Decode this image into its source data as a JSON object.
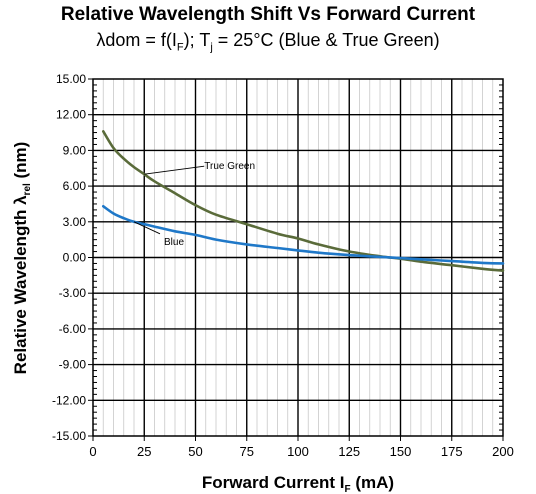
{
  "chart_data": {
    "type": "line",
    "title": "Relative Wavelength Shift Vs Forward Current",
    "subtitle": {
      "pre": "λdom = f(I",
      "sub1": "F",
      "mid": "); T",
      "sub2": "j",
      "post": " = 25°C (Blue & True Green)"
    },
    "xlabel": {
      "main": "Forward Current I",
      "sub": "F",
      "unit": " (mA)"
    },
    "ylabel": {
      "main": "Relative Wavelength λ",
      "sub": "rel",
      "unit": " (nm)"
    },
    "xlim": [
      0,
      200
    ],
    "ylim": [
      -15,
      15
    ],
    "x_ticks": [
      "0",
      "25",
      "50",
      "75",
      "100",
      "125",
      "150",
      "175",
      "200"
    ],
    "y_ticks": [
      "15.00",
      "12.00",
      "9.00",
      "6.00",
      "3.00",
      "0.00",
      "-3.00",
      "-6.00",
      "-9.00",
      "-12.00",
      "-15.00"
    ],
    "grid": true,
    "series": [
      {
        "name": "True Green",
        "color": "#5a6b3a",
        "x": [
          5,
          10,
          15,
          20,
          25,
          30,
          40,
          50,
          60,
          75,
          90,
          100,
          110,
          125,
          140,
          150,
          160,
          175,
          190,
          200
        ],
        "y": [
          10.6,
          9.2,
          8.3,
          7.6,
          7.0,
          6.4,
          5.4,
          4.4,
          3.6,
          2.8,
          2.0,
          1.6,
          1.1,
          0.5,
          0.1,
          -0.1,
          -0.35,
          -0.65,
          -0.95,
          -1.1
        ]
      },
      {
        "name": "Blue",
        "color": "#1f78c8",
        "x": [
          5,
          10,
          15,
          20,
          25,
          30,
          40,
          50,
          60,
          75,
          90,
          100,
          110,
          125,
          140,
          150,
          160,
          175,
          190,
          200
        ],
        "y": [
          4.3,
          3.7,
          3.3,
          3.0,
          2.8,
          2.6,
          2.2,
          1.9,
          1.5,
          1.1,
          0.8,
          0.6,
          0.4,
          0.2,
          0.05,
          -0.05,
          -0.15,
          -0.3,
          -0.45,
          -0.5
        ]
      }
    ],
    "annotations": [
      {
        "text": "True Green",
        "series": "True Green",
        "at_x": 25
      },
      {
        "text": "Blue",
        "series": "Blue",
        "at_x": 20
      }
    ]
  }
}
